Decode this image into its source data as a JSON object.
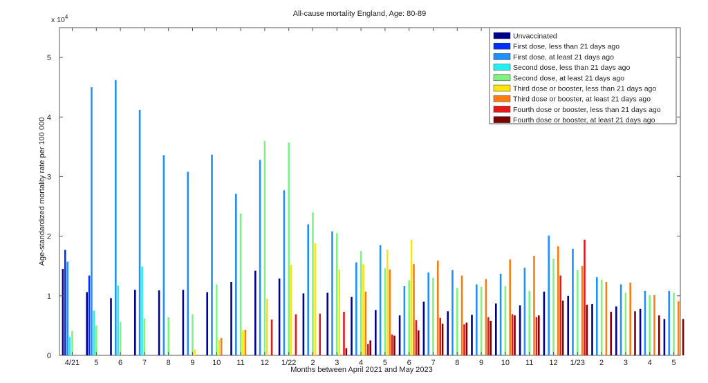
{
  "chart_data": {
    "type": "bar",
    "title": "All-cause mortality England, Age: 80-89",
    "xlabel": "Months between April 2021 and May 2023",
    "ylabel": "Age-standardized mortality rate per 100 000",
    "y_exponent_label": "x 10",
    "y_exponent_power": "4",
    "ylim": [
      0,
      55000
    ],
    "yticks": [
      0,
      10000,
      20000,
      30000,
      40000,
      50000
    ],
    "ytick_labels": [
      "0",
      "1",
      "2",
      "3",
      "4",
      "5"
    ],
    "grid": false,
    "legend_position": "top-right",
    "categories": [
      "4/21",
      "5",
      "6",
      "7",
      "8",
      "9",
      "10",
      "11",
      "12",
      "1/22",
      "2",
      "3",
      "4",
      "5",
      "6",
      "7",
      "8",
      "9",
      "10",
      "11",
      "12",
      "1/23",
      "2",
      "3",
      "4",
      "5"
    ],
    "series": [
      {
        "name": "Unvaccinated",
        "color": "#00008f",
        "values": [
          14500,
          10600,
          9600,
          11000,
          10900,
          11000,
          10600,
          12300,
          14200,
          12900,
          10400,
          10500,
          9800,
          7600,
          6700,
          9000,
          7400,
          6800,
          8700,
          8400,
          10700,
          10000,
          8600,
          8200,
          7800,
          6100
        ]
      },
      {
        "name": "First dose, less than 21 days ago",
        "color": "#0030ff",
        "values": [
          17700,
          13400,
          null,
          null,
          null,
          null,
          null,
          null,
          null,
          null,
          null,
          null,
          null,
          null,
          null,
          null,
          null,
          null,
          null,
          null,
          null,
          null,
          null,
          null,
          null,
          null
        ]
      },
      {
        "name": "First dose, at least 21 days ago",
        "color": "#1e90ff",
        "values": [
          15700,
          45000,
          46200,
          41200,
          33600,
          30800,
          33700,
          27100,
          32800,
          27700,
          22000,
          20800,
          15600,
          18500,
          11600,
          13900,
          14300,
          11900,
          13700,
          14700,
          20100,
          17900,
          13100,
          11900,
          10800,
          10800
        ]
      },
      {
        "name": "Second dose, less than 21 days ago",
        "color": "#20f0f0",
        "values": [
          3100,
          7500,
          11700,
          14900,
          null,
          null,
          null,
          null,
          null,
          null,
          null,
          null,
          null,
          null,
          null,
          null,
          null,
          null,
          null,
          null,
          null,
          null,
          null,
          null,
          null,
          null
        ]
      },
      {
        "name": "Second dose, at least 21 days ago",
        "color": "#7ff27f",
        "values": [
          4100,
          5000,
          5600,
          6200,
          6400,
          6900,
          11900,
          23800,
          36000,
          35700,
          24000,
          20500,
          17500,
          14600,
          12600,
          13000,
          11300,
          11500,
          11600,
          10800,
          16200,
          14300,
          12700,
          10500,
          10100,
          10500
        ]
      },
      {
        "name": "Third dose or booster, less than 21 days ago",
        "color": "#ffe600",
        "values": [
          null,
          null,
          null,
          null,
          null,
          1000,
          2600,
          4200,
          9500,
          15200,
          18800,
          14400,
          15300,
          17700,
          19400,
          null,
          null,
          null,
          null,
          null,
          null,
          null,
          null,
          null,
          null,
          null
        ]
      },
      {
        "name": "Third dose or booster, at least 21 days ago",
        "color": "#ff7a10",
        "values": [
          null,
          null,
          null,
          null,
          null,
          null,
          2900,
          4300,
          null,
          null,
          null,
          null,
          10700,
          14400,
          15300,
          15900,
          13400,
          12800,
          16100,
          16700,
          18300,
          15000,
          12300,
          12200,
          10100,
          9100
        ]
      },
      {
        "name": "Fourth dose or booster, less than 21 days ago",
        "color": "#e81818",
        "values": [
          null,
          null,
          null,
          null,
          null,
          null,
          null,
          null,
          6000,
          6900,
          7000,
          7300,
          1900,
          3500,
          5900,
          6300,
          5200,
          6400,
          6900,
          6400,
          13400,
          19400,
          null,
          null,
          null,
          null
        ]
      },
      {
        "name": "Fourth dose or booster, at least 21 days ago",
        "color": "#800000",
        "values": [
          null,
          null,
          null,
          null,
          null,
          null,
          null,
          null,
          null,
          null,
          null,
          1200,
          2500,
          3300,
          4200,
          5300,
          5500,
          5800,
          6700,
          6700,
          9200,
          8500,
          7300,
          7400,
          6700,
          6100
        ]
      }
    ]
  }
}
